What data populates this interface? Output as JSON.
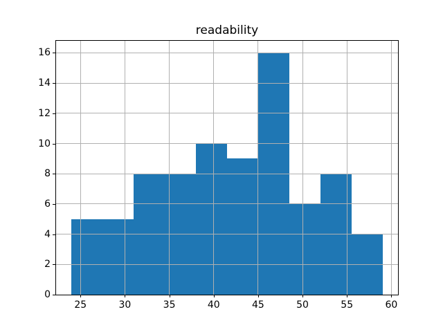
{
  "chart_data": {
    "type": "bar",
    "subtype": "histogram",
    "title": "readability",
    "xlabel": "",
    "ylabel": "",
    "bin_edges": [
      24.0,
      27.5,
      31.0,
      34.5,
      38.0,
      41.5,
      45.0,
      48.5,
      52.0,
      55.5,
      59.0
    ],
    "values": [
      5,
      5,
      8,
      8,
      10,
      9,
      16,
      6,
      8,
      4
    ],
    "xlim": [
      22.25,
      60.75
    ],
    "ylim": [
      0,
      16.8
    ],
    "x_ticks": [
      25,
      30,
      35,
      40,
      45,
      50,
      55,
      60
    ],
    "y_ticks": [
      0,
      2,
      4,
      6,
      8,
      10,
      12,
      14,
      16
    ],
    "grid": true,
    "grid_on_top_of_bars": true,
    "legend_position": "none",
    "bar_color": "#1f77b4",
    "grid_color": "#b0b0b0",
    "spine_color": "#000000",
    "background_color": "#ffffff"
  }
}
